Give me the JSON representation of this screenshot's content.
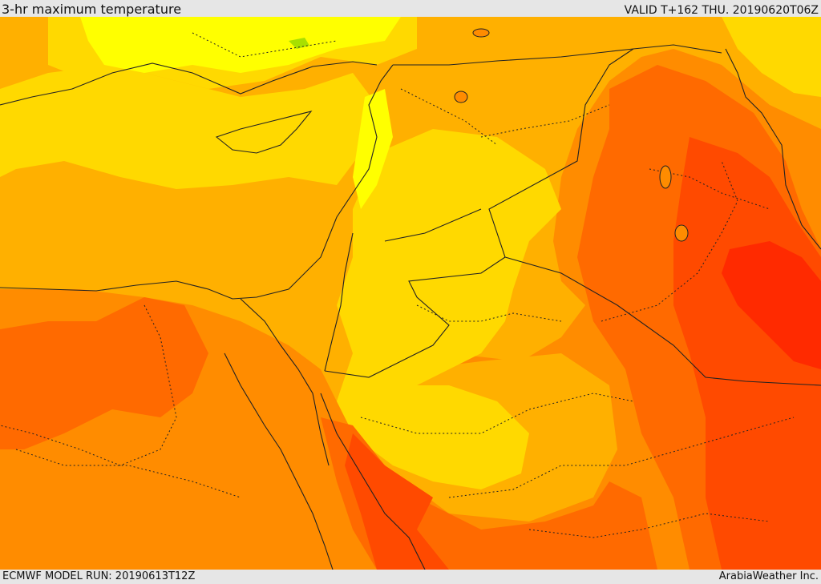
{
  "header": {
    "title": "3-hr maximum temperature",
    "valid": "VALID T+162 THU. 20190620T06Z"
  },
  "footer": {
    "model_run": "ECMWF MODEL RUN: 20190613T12Z",
    "credit": "ArabiaWeather Inc."
  },
  "palette": {
    "bright_yellow": "#ffff00",
    "yellow": "#ffd900",
    "light_orange": "#ffb000",
    "orange": "#ff8c00",
    "dark_orange": "#ff6a00",
    "red_orange": "#ff4a00",
    "red": "#ff2a00",
    "green_hint": "#a8e000"
  }
}
